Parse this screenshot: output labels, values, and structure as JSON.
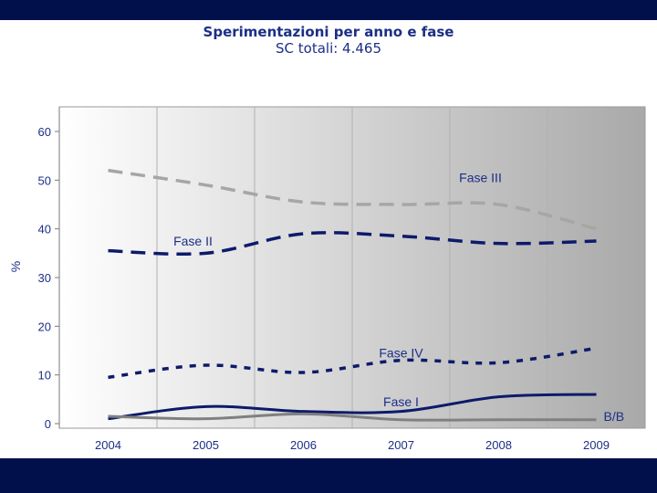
{
  "slide": {
    "band_color": "#01104a"
  },
  "chart_data": {
    "type": "line",
    "title": "Sperimentazioni per anno e fase",
    "subtitle": "SC totali: 4.465",
    "xlabel": "",
    "ylabel": "%",
    "categories": [
      "2004",
      "2005",
      "2006",
      "2007",
      "2008",
      "2009"
    ],
    "ylim": [
      0,
      65
    ],
    "yticks": [
      0,
      10,
      20,
      30,
      40,
      50,
      60
    ],
    "grid": true,
    "series": [
      {
        "name": "Fase III",
        "values": [
          52,
          49,
          45.5,
          45,
          45,
          40
        ],
        "color": "#a6a6a6",
        "style": "dashed-long",
        "label_year": "2008",
        "label_value": 50.5
      },
      {
        "name": "Fase II",
        "values": [
          35.5,
          35,
          39,
          38.5,
          37,
          37.5
        ],
        "color": "#0d1a6b",
        "style": "dashed-long",
        "label_year": "2005",
        "label_value": 37.5
      },
      {
        "name": "Fase IV",
        "values": [
          9.5,
          12,
          10.5,
          13,
          12.5,
          15.5
        ],
        "color": "#0d1a6b",
        "style": "dashed-short",
        "label_year": "2007",
        "label_value": 14.5
      },
      {
        "name": "Fase I",
        "values": [
          1,
          3.5,
          2.5,
          2.5,
          5.5,
          6
        ],
        "color": "#0d1a6b",
        "style": "solid",
        "label_year": "2007",
        "label_value": 4.5
      },
      {
        "name": "B/B",
        "values": [
          1.5,
          1,
          2,
          0.8,
          0.8,
          0.8
        ],
        "color": "#808080",
        "style": "solid",
        "label_year": "2009",
        "label_value": 1.5
      }
    ]
  }
}
